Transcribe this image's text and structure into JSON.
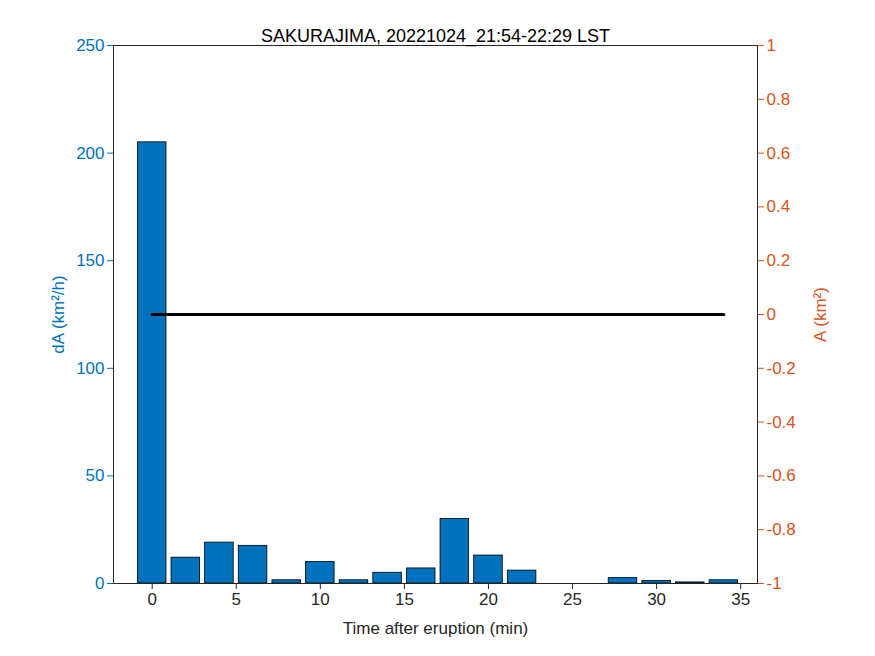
{
  "chart_data": {
    "type": "bar",
    "title": "SAKURAJIMA, 20221024_21:54-22:29 LST",
    "x_label": "Time after eruption (min)",
    "y_label": "dA (km²/h)",
    "y2_label": "A (km²)",
    "x": [
      0,
      2,
      4,
      6,
      8,
      10,
      12,
      14,
      16,
      18,
      20,
      22,
      24,
      26,
      28,
      30,
      32,
      34
    ],
    "series": [
      {
        "name": "dA (km²/h)",
        "type": "bar",
        "color": "#0072BD",
        "values": [
          205,
          12,
          19,
          17.5,
          1.5,
          10,
          1.5,
          5,
          7,
          30,
          13,
          6,
          0,
          0,
          2.5,
          1.2,
          0.5,
          1.5
        ]
      },
      {
        "name": "A (km²)",
        "type": "line",
        "axis": "y2",
        "color": "#000000",
        "values": [
          0,
          0,
          0,
          0,
          0,
          0,
          0,
          0,
          0,
          0,
          0,
          0,
          0,
          0,
          0,
          0,
          0,
          0
        ]
      }
    ],
    "xlim": [
      -2.3,
      36
    ],
    "xticks": [
      0,
      5,
      10,
      15,
      20,
      25,
      30,
      35
    ],
    "ylim": [
      0,
      250
    ],
    "yticks": [
      0,
      50,
      100,
      150,
      200,
      250
    ],
    "y2lim": [
      -1,
      1
    ],
    "y2ticks": [
      -1,
      -0.8,
      -0.6,
      -0.4,
      -0.2,
      0,
      0.2,
      0.4,
      0.6,
      0.8,
      1
    ],
    "grid": false
  }
}
